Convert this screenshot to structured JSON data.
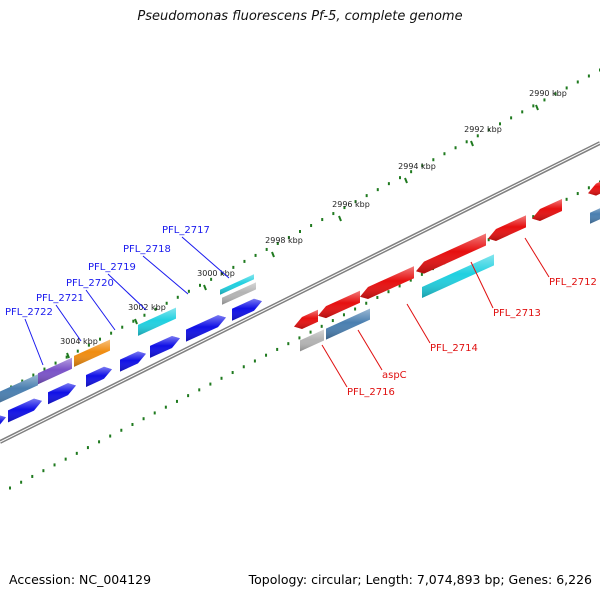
{
  "title": "Pseudomonas fluorescens Pf-5, complete genome",
  "footer": {
    "accession": "Accession: NC_004129",
    "stats": "Topology: circular; Length: 7,074,893 bp; Genes: 6,226"
  },
  "colors": {
    "backbone": "#808080",
    "tick_mark": "#1f7a1f",
    "forward_cds": "#1010e6",
    "reverse_cds": "#e60f0f",
    "cog_steelblue": "#4a7fb0",
    "cog_purple": "#7a52c8",
    "cog_orange": "#f08c10",
    "cog_cyan": "#20d0e0",
    "cog_gray": "#b4b4b4",
    "forward_label": "#1a1aee",
    "reverse_label": "#e01010"
  },
  "scale_ticks": [
    "2990 kbp",
    "2992 kbp",
    "2994 kbp",
    "2996 kbp",
    "2998 kbp",
    "3000 kbp",
    "3002 kbp",
    "3004 kbp"
  ],
  "gene_labels_forward": [
    "PFL_2717",
    "PFL_2718",
    "PFL_2719",
    "PFL_2720",
    "PFL_2721",
    "PFL_2722"
  ],
  "gene_labels_reverse": [
    "PFL_2712",
    "PFL_2713",
    "PFL_2714",
    "aspC",
    "PFL_2716"
  ]
}
